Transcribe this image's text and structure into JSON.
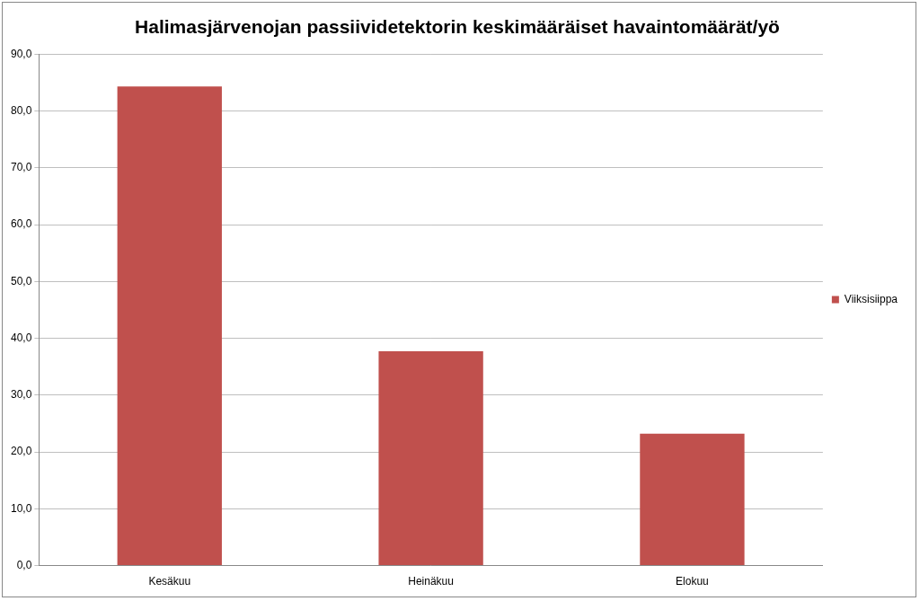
{
  "chart_data": {
    "type": "bar",
    "title": "Halimasjärvenojan passiividetektorin keskimääräiset havaintomäärät/yö",
    "categories": [
      "Kesäkuu",
      "Heinäkuu",
      "Elokuu"
    ],
    "series": [
      {
        "name": "Viiksisiippa",
        "color": "#c0504d",
        "values": [
          84.3,
          37.7,
          23.2
        ]
      }
    ],
    "ylim": [
      0,
      90
    ],
    "yticks": [
      {
        "value": 0,
        "label": "0,0"
      },
      {
        "value": 10,
        "label": "10,0"
      },
      {
        "value": 20,
        "label": "20,0"
      },
      {
        "value": 30,
        "label": "30,0"
      },
      {
        "value": 40,
        "label": "40,0"
      },
      {
        "value": 50,
        "label": "50,0"
      },
      {
        "value": 60,
        "label": "60,0"
      },
      {
        "value": 70,
        "label": "70,0"
      },
      {
        "value": 80,
        "label": "80,0"
      },
      {
        "value": 90,
        "label": "90,0"
      }
    ],
    "grid": true,
    "legend": "right"
  }
}
